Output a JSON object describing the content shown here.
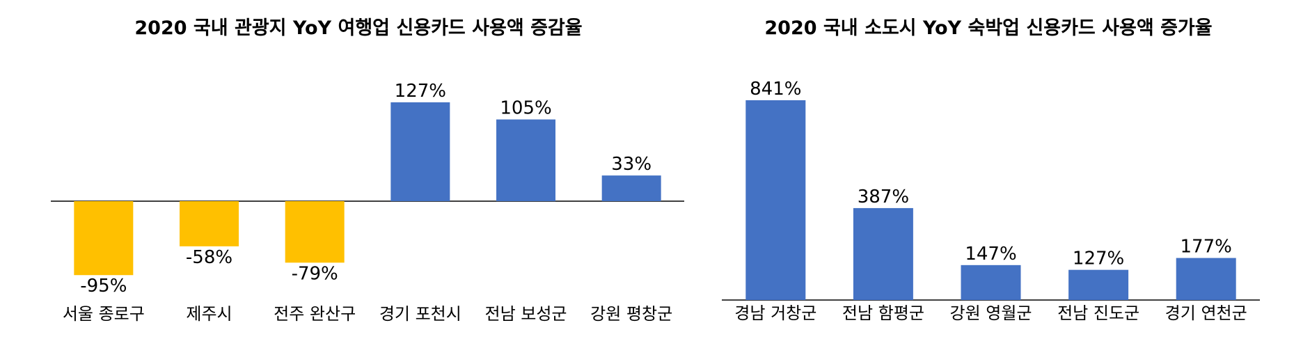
{
  "chart_data": [
    {
      "type": "bar",
      "title": "2020 국내 관광지 YoY 여행업 신용카드 사용액 증감율",
      "categories": [
        "서울 종로구",
        "제주시",
        "전주 완산구",
        "경기 포천시",
        "전남 보성군",
        "강원 평창군"
      ],
      "values": [
        -95,
        -58,
        -79,
        127,
        105,
        33
      ],
      "value_labels": [
        "-95%",
        "-58%",
        "-79%",
        "127%",
        "105%",
        "33%"
      ],
      "unit": "%",
      "colors": {
        "positive": "#4472C4",
        "negative": "#FFC000"
      },
      "baseline": 0,
      "ylim": [
        -110,
        127
      ],
      "grid": false,
      "legend": "none"
    },
    {
      "type": "bar",
      "title": "2020 국내 소도시 YoY 숙박업 신용카드 사용액 증가율",
      "categories": [
        "경남 거창군",
        "전남 함평군",
        "강원 영월군",
        "전남 진도군",
        "경기 연천군"
      ],
      "values": [
        841,
        387,
        147,
        127,
        177
      ],
      "value_labels": [
        "841%",
        "387%",
        "147%",
        "127%",
        "177%"
      ],
      "unit": "%",
      "colors": {
        "positive": "#4472C4"
      },
      "baseline": 0,
      "ylim": [
        0,
        841
      ],
      "grid": false,
      "legend": "none"
    }
  ]
}
